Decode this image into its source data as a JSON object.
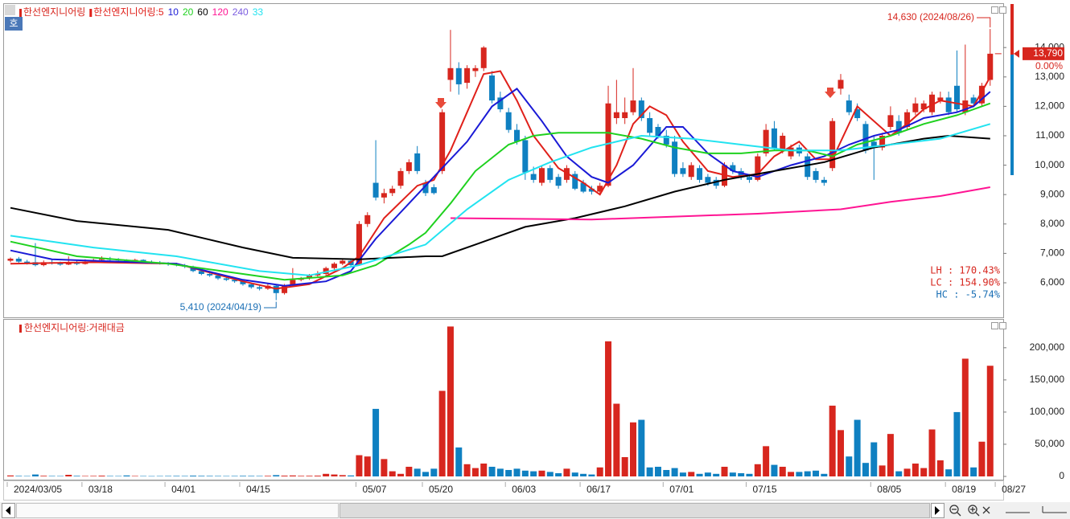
{
  "legend_icon": "호",
  "chart_data": [
    {
      "type": "candlestick",
      "title": "한선엔지니어링",
      "color_up": "#d7261e",
      "color_down": "#0f80c1",
      "open": [
        6750,
        6820,
        6720,
        6700,
        6600,
        6700,
        6660,
        6620,
        6700,
        6640,
        6720,
        6780,
        6820,
        6800,
        6760,
        6720,
        6780,
        6700,
        6680,
        6660,
        6640,
        6600,
        6550,
        6400,
        6300,
        6250,
        6150,
        6100,
        6050,
        5950,
        5850,
        5800,
        5900,
        5650,
        5900,
        6100,
        6150,
        6250,
        6300,
        6500,
        6650,
        6750,
        6600,
        8000,
        9400,
        8900,
        9050,
        9300,
        9800,
        10400,
        9400,
        9250,
        9800,
        12900,
        13300,
        12800,
        13200,
        13300,
        13050,
        12300,
        11800,
        11200,
        10850,
        9700,
        9400,
        9900,
        9600,
        9500,
        9700,
        9400,
        9200,
        9100,
        9300,
        11600,
        11600,
        11800,
        12200,
        11600,
        11300,
        11000,
        10800,
        9900,
        9600,
        9900,
        9600,
        9500,
        9300,
        10000,
        9800,
        9600,
        9500,
        10400,
        11250,
        10500,
        10300,
        10600,
        10300,
        9800,
        9500,
        9900,
        12600,
        12200,
        11900,
        11400,
        10800,
        10600,
        11300,
        11500,
        11300,
        11800,
        11900,
        11800,
        12200,
        12300,
        12700,
        11800,
        12300,
        12100,
        12900,
        null
      ],
      "high": [
        6860,
        6880,
        6780,
        7350,
        6760,
        6780,
        6720,
        6900,
        6760,
        6800,
        6820,
        6900,
        6880,
        6840,
        6800,
        6820,
        6800,
        6760,
        6740,
        6700,
        6680,
        6640,
        6580,
        6440,
        6340,
        6280,
        6200,
        6140,
        6080,
        6000,
        5900,
        5960,
        5920,
        5960,
        6500,
        6200,
        6300,
        6400,
        6550,
        6700,
        6800,
        6780,
        8100,
        8400,
        10850,
        9200,
        9300,
        9900,
        10200,
        10650,
        9500,
        9350,
        11900,
        14600,
        13500,
        13400,
        13400,
        14050,
        13200,
        12500,
        11950,
        11400,
        11000,
        9950,
        10000,
        10000,
        9700,
        10000,
        9800,
        9500,
        9300,
        9400,
        12700,
        12900,
        12300,
        13300,
        12300,
        11800,
        11400,
        11200,
        11000,
        10100,
        10100,
        10000,
        9700,
        9600,
        10100,
        10100,
        9900,
        9700,
        10400,
        11400,
        11500,
        11100,
        10700,
        10700,
        10400,
        9900,
        9600,
        11600,
        13100,
        12400,
        12100,
        11500,
        11000,
        11100,
        12000,
        11700,
        11900,
        12300,
        12200,
        12500,
        12500,
        12500,
        13900,
        14100,
        12400,
        12800,
        14630,
        null
      ],
      "low": [
        6700,
        6680,
        6620,
        6560,
        6560,
        6620,
        6580,
        6600,
        6600,
        6620,
        6680,
        6740,
        6740,
        6720,
        6660,
        6680,
        6660,
        6640,
        6620,
        6580,
        6560,
        6500,
        6360,
        6260,
        6200,
        6100,
        6060,
        6000,
        5900,
        5800,
        5740,
        5760,
        5410,
        5600,
        5860,
        6050,
        6100,
        6200,
        6260,
        6440,
        6600,
        6560,
        6580,
        7900,
        8800,
        8700,
        8950,
        9200,
        9700,
        9700,
        8950,
        9000,
        9700,
        12500,
        12400,
        12600,
        13000,
        13200,
        12100,
        11800,
        11100,
        10700,
        9500,
        9400,
        9300,
        9400,
        9200,
        9400,
        9150,
        9050,
        9000,
        9000,
        9250,
        11400,
        11400,
        11700,
        11500,
        11000,
        10900,
        10600,
        9600,
        9600,
        9500,
        9400,
        9300,
        9200,
        9250,
        9700,
        9500,
        9400,
        9450,
        10300,
        10500,
        10400,
        10200,
        10300,
        9500,
        9400,
        9300,
        9800,
        12400,
        11700,
        11500,
        10400,
        9500,
        10500,
        11200,
        11000,
        11200,
        11700,
        11800,
        11700,
        12100,
        11700,
        11800,
        11700,
        12000,
        12000,
        12700,
        null
      ],
      "close": [
        6820,
        6720,
        6680,
        6600,
        6700,
        6660,
        6620,
        6700,
        6640,
        6720,
        6780,
        6820,
        6780,
        6760,
        6720,
        6780,
        6700,
        6680,
        6660,
        6640,
        6600,
        6550,
        6400,
        6300,
        6250,
        6150,
        6100,
        6050,
        5950,
        5850,
        5800,
        5900,
        5650,
        5900,
        6100,
        6150,
        6250,
        6300,
        6500,
        6650,
        6750,
        6600,
        8000,
        8300,
        8900,
        9050,
        9200,
        9800,
        10100,
        9800,
        9050,
        9050,
        11800,
        13300,
        12750,
        13300,
        13300,
        14000,
        12200,
        11900,
        11200,
        10800,
        9750,
        9500,
        9900,
        9500,
        9300,
        9900,
        9200,
        9100,
        9100,
        9300,
        12100,
        11800,
        11800,
        12200,
        11600,
        11100,
        11000,
        10700,
        9700,
        9700,
        10000,
        9500,
        9400,
        9300,
        10000,
        9800,
        9600,
        9500,
        10300,
        11200,
        10560,
        11000,
        10600,
        10400,
        9600,
        9500,
        9400,
        11500,
        12900,
        11800,
        11600,
        10500,
        10600,
        11000,
        11700,
        11100,
        11800,
        12100,
        12100,
        12400,
        12300,
        11800,
        11900,
        12200,
        12100,
        12700,
        13790,
        null
      ],
      "ylim": [
        4825,
        15480
      ],
      "yticks": [
        {
          "value": 6000,
          "label": "6,000"
        },
        {
          "value": 7000,
          "label": "7,000"
        },
        {
          "value": 8000,
          "label": "8,000"
        },
        {
          "value": 9000,
          "label": "9,000"
        },
        {
          "value": 10000,
          "label": "10,000"
        },
        {
          "value": 11000,
          "label": "11,000"
        },
        {
          "value": 12000,
          "label": "12,000"
        },
        {
          "value": 13000,
          "label": "13,000"
        },
        {
          "value": 14000,
          "label": "14,000"
        }
      ],
      "series": [
        {
          "name": "한선엔지니어링:5",
          "color": "#e0201a",
          "x": [
            0,
            10,
            20,
            28,
            32,
            36,
            40,
            42,
            45,
            49,
            51,
            53,
            55,
            57,
            59,
            61,
            63,
            66,
            69,
            71,
            73,
            75,
            77,
            79,
            81,
            84,
            87,
            90,
            92,
            95,
            97,
            99,
            101,
            102,
            104,
            106,
            108,
            110,
            112,
            114,
            116,
            118
          ],
          "values": [
            6650,
            6700,
            6650,
            6050,
            5800,
            5950,
            6500,
            6900,
            8200,
            9300,
            9500,
            10500,
            11800,
            13100,
            13200,
            12200,
            11000,
            9900,
            9400,
            9000,
            10000,
            11400,
            12000,
            11700,
            10800,
            9800,
            9600,
            9700,
            10300,
            10800,
            10200,
            10200,
            11400,
            12000,
            11500,
            11000,
            11400,
            11900,
            12200,
            12100,
            12000,
            13000
          ]
        },
        {
          "name": "10",
          "color": "#1a1ad6",
          "x": [
            0,
            5,
            15,
            20,
            28,
            33,
            38,
            41,
            44,
            48,
            51,
            55,
            58,
            61,
            64,
            67,
            70,
            72,
            75,
            79,
            81,
            84,
            87,
            90,
            94,
            98,
            101,
            104,
            107,
            110,
            114,
            116,
            118
          ],
          "values": [
            7100,
            6800,
            6700,
            6650,
            6100,
            5900,
            6050,
            6400,
            7500,
            8700,
            9600,
            10800,
            12000,
            12600,
            11500,
            10300,
            9600,
            9400,
            10000,
            11300,
            11300,
            10400,
            9800,
            9600,
            10000,
            10300,
            10700,
            11000,
            11200,
            11600,
            11800,
            12000,
            12500
          ]
        },
        {
          "name": "20",
          "color": "#1fd11f",
          "x": [
            0,
            8,
            19,
            28,
            33,
            40,
            44,
            48,
            50,
            53,
            56,
            60,
            63,
            66,
            70,
            72,
            76,
            80,
            84,
            88,
            92,
            96,
            99,
            102,
            106,
            110,
            114,
            118
          ],
          "values": [
            7400,
            6900,
            6650,
            6300,
            6100,
            6250,
            6600,
            7300,
            7700,
            8700,
            9800,
            10700,
            11000,
            11100,
            11100,
            11100,
            10900,
            10600,
            10400,
            10400,
            10500,
            10500,
            10300,
            10700,
            11000,
            11400,
            11700,
            12100
          ]
        },
        {
          "name": "60",
          "color": "#000000",
          "x": [
            0,
            8,
            19,
            28,
            34,
            42,
            50,
            52,
            56,
            62,
            68,
            74,
            80,
            86,
            92,
            98,
            104,
            110,
            113,
            118
          ],
          "values": [
            8550,
            8100,
            7800,
            7200,
            6850,
            6800,
            6900,
            6900,
            7300,
            7900,
            8200,
            8600,
            9100,
            9500,
            9800,
            10100,
            10600,
            10900,
            11000,
            10900
          ]
        },
        {
          "name": "120",
          "color": "#ff1493",
          "x": [
            53,
            70,
            80,
            90,
            100,
            106,
            112,
            118
          ],
          "values": [
            8200,
            8150,
            8250,
            8350,
            8500,
            8750,
            8950,
            9250
          ]
        },
        {
          "name": "240",
          "color": "#7b5ce0",
          "x": [],
          "values": []
        },
        {
          "name": "33",
          "color": "#22e3f0",
          "x": [
            0,
            10,
            20,
            30,
            36,
            42,
            50,
            55,
            60,
            65,
            70,
            76,
            82,
            88,
            94,
            100,
            106,
            112,
            118
          ],
          "values": [
            7600,
            7200,
            6900,
            6400,
            6250,
            6600,
            7300,
            8500,
            9500,
            10100,
            10600,
            11000,
            10900,
            10700,
            10500,
            10500,
            10700,
            10900,
            11400
          ]
        }
      ],
      "annotations": [
        "14,630 (2024/08/26)",
        "5,410 (2024/04/19)"
      ],
      "last_price_label": "13,790",
      "change_label": "0.00%",
      "stats": [
        "LH :  170.43%",
        "LC :  154.90%",
        "HC :   -5.74%"
      ]
    },
    {
      "type": "bar",
      "title": "한선엔지니어링:거래대금",
      "categories": [
        "2024/03/05",
        null,
        null,
        null,
        null,
        null,
        null,
        null,
        null,
        "03/18",
        null,
        null,
        null,
        null,
        null,
        null,
        null,
        null,
        null,
        "04/01",
        null,
        null,
        null,
        null,
        null,
        null,
        null,
        null,
        "04/15",
        null,
        null,
        null,
        null,
        null,
        null,
        null,
        null,
        null,
        null,
        null,
        null,
        null,
        "05/07",
        null,
        null,
        null,
        null,
        null,
        null,
        null,
        "05/20",
        null,
        null,
        null,
        null,
        null,
        null,
        null,
        null,
        null,
        "06/03",
        null,
        null,
        null,
        null,
        null,
        null,
        null,
        null,
        "06/17",
        null,
        null,
        null,
        null,
        null,
        null,
        null,
        null,
        null,
        "07/01",
        null,
        null,
        null,
        null,
        null,
        null,
        null,
        null,
        null,
        "07/15",
        null,
        null,
        null,
        null,
        null,
        null,
        null,
        null,
        null,
        null,
        null,
        null,
        null,
        null,
        "08/05",
        null,
        null,
        null,
        null,
        null,
        null,
        null,
        null,
        "08/19",
        null,
        null,
        null,
        null,
        null,
        "08/27"
      ],
      "values": [
        1500,
        800,
        600,
        3000,
        1000,
        700,
        600,
        2500,
        900,
        700,
        800,
        1200,
        700,
        600,
        1500,
        700,
        600,
        500,
        600,
        700,
        800,
        700,
        1200,
        900,
        800,
        700,
        600,
        700,
        900,
        800,
        700,
        900,
        2000,
        1200,
        1500,
        900,
        1000,
        1200,
        4000,
        3000,
        2000,
        1500,
        33000,
        31000,
        105000,
        27000,
        8000,
        4000,
        15000,
        12000,
        7000,
        12000,
        133000,
        233000,
        45000,
        19000,
        13000,
        20000,
        15000,
        12000,
        10000,
        12000,
        9000,
        8000,
        9000,
        7000,
        5000,
        12000,
        6000,
        4000,
        3000,
        14000,
        210000,
        113000,
        30000,
        84000,
        88000,
        14000,
        15000,
        10000,
        13000,
        6000,
        7000,
        4000,
        6000,
        4000,
        15000,
        6000,
        5000,
        4000,
        19000,
        47000,
        18000,
        15000,
        7000,
        7000,
        8000,
        9000,
        4000,
        110000,
        72000,
        31000,
        88000,
        21000,
        53000,
        17000,
        66000,
        8000,
        12000,
        20000,
        13000,
        73000,
        25000,
        11000,
        100000,
        183000,
        14000,
        54000,
        172000,
        null
      ],
      "ylim": [
        0,
        241000
      ],
      "yticks": [
        0,
        {
          "value": 50000,
          "label": "50,000"
        },
        {
          "value": 100000,
          "label": "100,000"
        },
        {
          "value": 150000,
          "label": "150,000"
        },
        {
          "value": 200000,
          "label": "200,000"
        }
      ]
    }
  ]
}
